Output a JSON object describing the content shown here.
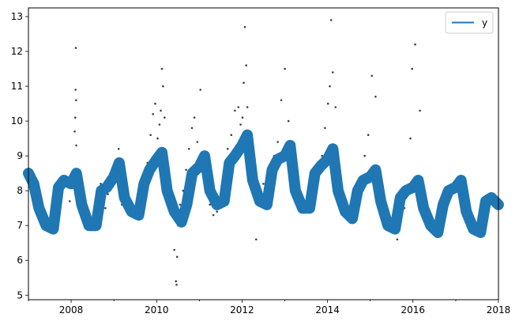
{
  "chart_data": {
    "type": "line",
    "title": "",
    "xlabel": "",
    "ylabel": "",
    "xlim": [
      "2007-01-01",
      "2018-01-01"
    ],
    "ylim": [
      4.87,
      13.25
    ],
    "x_ticks": [
      "2008",
      "2010",
      "2012",
      "2014",
      "2016",
      "2018"
    ],
    "y_ticks": [
      "5",
      "6",
      "7",
      "8",
      "9",
      "10",
      "11",
      "12",
      "13"
    ],
    "grid": false,
    "legend": {
      "position": "top-right",
      "entries": [
        "y"
      ]
    },
    "colors": {
      "line": "#1f77b4",
      "points": "#000000"
    },
    "series": [
      {
        "name": "y",
        "kind": "line",
        "band_width": 0.5,
        "x": [
          "2007-01-01",
          "2007-02-15",
          "2007-04-01",
          "2007-06-01",
          "2007-08-01",
          "2007-09-15",
          "2007-11-01",
          "2008-01-01",
          "2008-02-15",
          "2008-04-01",
          "2008-06-01",
          "2008-08-01",
          "2008-09-15",
          "2008-11-01",
          "2009-01-01",
          "2009-02-15",
          "2009-04-01",
          "2009-06-01",
          "2009-08-01",
          "2009-09-15",
          "2009-11-01",
          "2010-01-01",
          "2010-02-15",
          "2010-04-01",
          "2010-06-01",
          "2010-08-01",
          "2010-09-15",
          "2010-11-01",
          "2011-01-01",
          "2011-02-15",
          "2011-04-01",
          "2011-06-01",
          "2011-08-01",
          "2011-09-15",
          "2011-11-01",
          "2012-01-01",
          "2012-02-15",
          "2012-04-01",
          "2012-06-01",
          "2012-08-01",
          "2012-09-15",
          "2012-11-01",
          "2013-01-01",
          "2013-02-15",
          "2013-04-01",
          "2013-06-01",
          "2013-08-01",
          "2013-09-15",
          "2013-11-01",
          "2014-01-01",
          "2014-02-15",
          "2014-04-01",
          "2014-06-01",
          "2014-08-01",
          "2014-09-15",
          "2014-11-01",
          "2015-01-01",
          "2015-02-15",
          "2015-04-01",
          "2015-06-01",
          "2015-08-01",
          "2015-09-15",
          "2015-11-01",
          "2016-01-01",
          "2016-02-15",
          "2016-04-01",
          "2016-06-01",
          "2016-08-01",
          "2016-09-15",
          "2016-11-01",
          "2017-01-01",
          "2017-02-15",
          "2017-04-01",
          "2017-06-01",
          "2017-08-01",
          "2017-09-15",
          "2017-11-01",
          "2017-12-31"
        ],
        "values": [
          8.5,
          8.2,
          7.5,
          7.0,
          6.9,
          8.1,
          8.3,
          8.2,
          8.5,
          7.6,
          7.0,
          7.0,
          8.0,
          8.1,
          8.4,
          8.8,
          7.8,
          7.4,
          7.3,
          8.2,
          8.6,
          8.9,
          9.1,
          8.0,
          7.4,
          7.1,
          7.6,
          8.5,
          8.7,
          9.0,
          8.0,
          7.6,
          7.7,
          8.8,
          9.0,
          9.3,
          9.6,
          8.3,
          7.7,
          7.6,
          8.6,
          8.9,
          9.0,
          9.3,
          8.0,
          7.5,
          7.5,
          8.5,
          8.7,
          8.9,
          9.2,
          8.0,
          7.4,
          7.2,
          8.0,
          8.3,
          8.4,
          8.6,
          7.7,
          7.0,
          6.9,
          7.8,
          8.0,
          8.1,
          8.3,
          7.5,
          7.0,
          6.8,
          7.6,
          8.0,
          8.1,
          8.3,
          7.4,
          6.9,
          6.8,
          7.7,
          7.8,
          7.6
        ]
      },
      {
        "name": "",
        "kind": "scatter",
        "x": [
          "2007-12-20",
          "2008-01-25",
          "2008-02-01",
          "2008-02-05",
          "2008-02-08",
          "2008-02-10",
          "2008-02-12",
          "2008-02-14",
          "2008-02-20",
          "2008-03-01",
          "2008-04-10",
          "2008-05-20",
          "2008-06-15",
          "2008-07-10",
          "2008-08-01",
          "2008-08-20",
          "2008-09-10",
          "2008-10-01",
          "2008-10-20",
          "2008-11-10",
          "2008-12-01",
          "2008-12-20",
          "2009-01-15",
          "2009-02-10",
          "2009-03-10",
          "2009-04-20",
          "2009-05-15",
          "2009-06-10",
          "2009-07-05",
          "2009-08-01",
          "2009-08-25",
          "2009-09-20",
          "2009-10-15",
          "2009-11-10",
          "2009-12-01",
          "2009-12-20",
          "2010-01-10",
          "2010-01-25",
          "2010-02-05",
          "2010-02-15",
          "2010-02-25",
          "2010-03-10",
          "2010-04-01",
          "2010-05-10",
          "2010-06-01",
          "2010-06-15",
          "2010-06-20",
          "2010-06-25",
          "2010-07-05",
          "2010-07-20",
          "2010-08-15",
          "2010-09-10",
          "2010-10-05",
          "2010-10-30",
          "2010-11-20",
          "2010-12-15",
          "2011-01-10",
          "2011-02-01",
          "2011-03-01",
          "2011-04-01",
          "2011-05-01",
          "2011-06-01",
          "2011-07-01",
          "2011-08-01",
          "2011-09-01",
          "2011-10-01",
          "2011-11-01",
          "2011-12-01",
          "2011-12-20",
          "2012-01-05",
          "2012-01-15",
          "2012-01-25",
          "2012-02-05",
          "2012-02-15",
          "2012-03-01",
          "2012-03-20",
          "2012-05-01",
          "2012-07-01",
          "2012-09-01",
          "2012-10-01",
          "2012-11-01",
          "2012-12-01",
          "2013-01-01",
          "2013-02-01",
          "2013-03-01",
          "2013-05-01",
          "2013-07-01",
          "2013-09-01",
          "2013-10-15",
          "2013-11-15",
          "2013-12-10",
          "2014-01-05",
          "2014-01-20",
          "2014-02-01",
          "2014-02-15",
          "2014-03-10",
          "2014-04-20",
          "2014-06-01",
          "2014-08-01",
          "2014-09-15",
          "2014-10-15",
          "2014-11-15",
          "2014-12-15",
          "2015-01-15",
          "2015-02-15",
          "2015-04-01",
          "2015-06-01",
          "2015-07-15",
          "2015-08-20",
          "2015-09-20",
          "2015-10-20",
          "2015-11-20",
          "2015-12-10",
          "2015-12-25",
          "2016-01-20",
          "2016-03-01"
        ],
        "values": [
          7.7,
          8.5,
          9.7,
          10.1,
          10.9,
          12.1,
          10.6,
          9.3,
          8.2,
          7.8,
          7.5,
          7.2,
          7.0,
          7.1,
          7.7,
          7.5,
          8.2,
          7.8,
          7.5,
          7.9,
          8.5,
          8.2,
          8.8,
          9.2,
          7.6,
          7.4,
          7.5,
          7.3,
          7.2,
          7.6,
          8.1,
          8.5,
          8.8,
          9.6,
          10.2,
          10.5,
          9.5,
          9.9,
          10.3,
          11.5,
          11.0,
          10.1,
          8.4,
          7.6,
          6.3,
          5.4,
          5.3,
          6.1,
          7.0,
          7.6,
          8.0,
          8.6,
          9.2,
          9.8,
          10.1,
          9.4,
          10.9,
          9.1,
          8.0,
          7.6,
          7.3,
          7.4,
          7.8,
          8.4,
          9.2,
          9.6,
          10.3,
          10.4,
          9.9,
          10.1,
          11.1,
          12.7,
          11.6,
          10.4,
          9.6,
          8.6,
          6.6,
          8.2,
          8.6,
          9.0,
          9.4,
          10.6,
          11.5,
          10.0,
          8.6,
          7.5,
          7.4,
          7.7,
          8.5,
          9.0,
          9.8,
          10.5,
          11.0,
          12.9,
          11.4,
          10.4,
          8.2,
          7.5,
          7.1,
          7.8,
          8.4,
          9.0,
          9.6,
          11.3,
          10.7,
          8.2,
          7.4,
          6.8,
          6.6,
          7.1,
          7.5,
          8.0,
          9.5,
          11.5,
          12.2,
          10.3
        ]
      }
    ]
  }
}
